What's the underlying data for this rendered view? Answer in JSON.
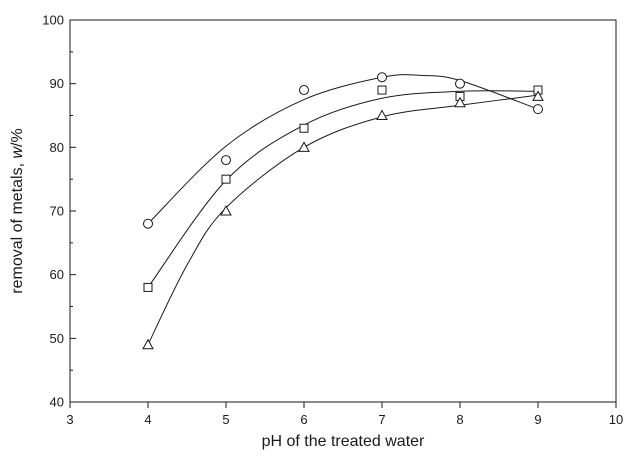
{
  "chart_data": {
    "type": "scatter",
    "title": "",
    "xlabel": "pH of the treated water",
    "ylabel_parts": [
      "removal of metals, ",
      "w",
      "/%"
    ],
    "xlim": [
      3,
      10
    ],
    "ylim": [
      40,
      100
    ],
    "x_ticks": [
      3,
      4,
      5,
      6,
      7,
      8,
      9,
      10
    ],
    "y_ticks": [
      40,
      50,
      60,
      70,
      80,
      90,
      100
    ],
    "grid": false,
    "legend": "none",
    "series": [
      {
        "marker": "circle",
        "x": [
          4,
          5,
          6,
          7,
          8,
          9
        ],
        "y": [
          68,
          78,
          89,
          91,
          90,
          86
        ]
      },
      {
        "marker": "square",
        "x": [
          4,
          5,
          6,
          7,
          8,
          9
        ],
        "y": [
          58,
          75,
          83,
          89,
          88,
          89
        ]
      },
      {
        "marker": "triangle",
        "x": [
          4,
          5,
          6,
          7,
          8,
          9
        ],
        "y": [
          49,
          70,
          80,
          85,
          87,
          88
        ]
      }
    ],
    "fit_curves": [
      {
        "marker": "circle",
        "x": [
          4,
          5,
          6,
          7,
          7.5,
          8,
          9
        ],
        "y": [
          68,
          80.2,
          87.5,
          91,
          91.3,
          90.5,
          86
        ]
      },
      {
        "marker": "square",
        "x": [
          4,
          5,
          6,
          7,
          8,
          9
        ],
        "y": [
          58,
          74.8,
          83.5,
          87.7,
          88.8,
          88.8
        ]
      },
      {
        "marker": "triangle",
        "x": [
          4,
          4.5,
          5,
          6,
          7,
          8,
          9
        ],
        "y": [
          49,
          61.5,
          70.5,
          80,
          84.8,
          86.6,
          88.2
        ]
      }
    ]
  }
}
